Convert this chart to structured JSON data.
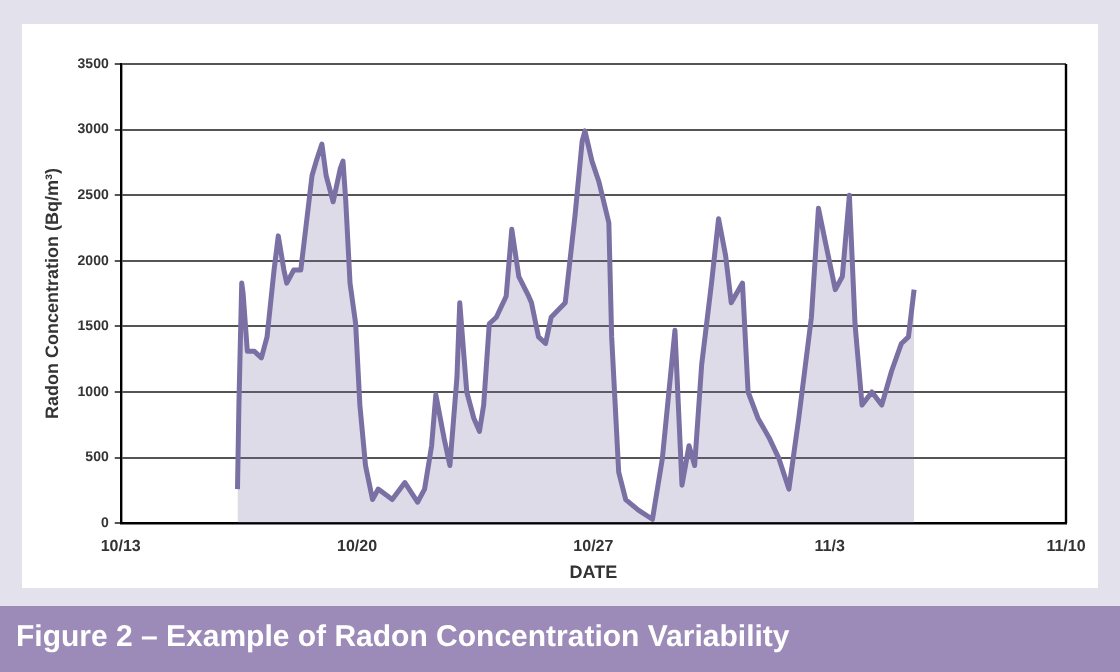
{
  "chart_data": {
    "type": "area",
    "title": "Figure 2 – Example of Radon Concentration Variability",
    "xlabel": "DATE",
    "ylabel": "Radon Concentration (Bq/m³)",
    "xlim": [
      "--10-13",
      "--11-10"
    ],
    "xticks": [
      {
        "value": "--10-13",
        "label": "10/13"
      },
      {
        "value": "--10-20",
        "label": "10/20"
      },
      {
        "value": "--10-27",
        "label": "10/27"
      },
      {
        "value": "--11-03",
        "label": "11/3"
      },
      {
        "value": "--11-10",
        "label": "11/10"
      }
    ],
    "ylim": [
      0,
      3500
    ],
    "yticks": [
      0,
      500,
      1000,
      1500,
      2000,
      2500,
      3000,
      3500
    ],
    "grid": "y",
    "legend": false,
    "marker": "none",
    "line_style": "solid",
    "x": [
      "--10-16T11:00",
      "--10-16T12:00",
      "--10-16T14:00",
      "--10-16T15:00",
      "--10-16T18:00",
      "--10-16T23:00",
      "--10-17T04:00",
      "--10-17T08:00",
      "--10-17T13:00",
      "--10-17T16:00",
      "--10-17T20:00",
      "--10-17T22:00",
      "--10-18T03:00",
      "--10-18T08:00",
      "--10-18T12:00",
      "--10-18T16:00",
      "--10-18T19:00",
      "--10-18T23:00",
      "--10-19T02:00",
      "--10-19T07:00",
      "--10-19T12:00",
      "--10-19T14:00",
      "--10-19T16:00",
      "--10-19T19:00",
      "--10-19T23:00",
      "--10-20T02:00",
      "--10-20T06:00",
      "--10-20T11:00",
      "--10-20T15:00",
      "--10-21T01:00",
      "--10-21T10:00",
      "--10-21T19:00",
      "--10-22T00:00",
      "--10-22T05:00",
      "--10-22T08:00",
      "--10-22T14:00",
      "--10-22T18:00",
      "--10-22T23:00",
      "--10-23T01:00",
      "--10-23T06:00",
      "--10-23T11:00",
      "--10-23T15:00",
      "--10-23T18:00",
      "--10-23T22:00",
      "--10-24T03:00",
      "--10-24T10:00",
      "--10-24T14:00",
      "--10-24T19:00",
      "--10-25T02:00",
      "--10-25T04:00",
      "--10-25T09:00",
      "--10-25T14:00",
      "--10-25T18:00",
      "--10-26T04:00",
      "--10-26T11:00",
      "--10-26T16:00",
      "--10-26T18:00",
      "--10-26T23:00",
      "--10-27T04:00",
      "--10-27T11:00",
      "--10-27T13:00",
      "--10-27T18:00",
      "--10-27T23:00",
      "--10-28T08:00",
      "--10-28T18:00",
      "--10-29T01:00",
      "--10-29T10:00",
      "--10-29T15:00",
      "--10-29T20:00",
      "--10-30T00:00",
      "--10-30T05:00",
      "--10-30T12:00",
      "--10-30T17:00",
      "--10-30T22:00",
      "--10-31T02:00",
      "--10-31T10:00",
      "--10-31T14:00",
      "--10-31T21:00",
      "--11-01T05:00",
      "--11-01T12:00",
      "--11-01T19:00",
      "--11-02T02:00",
      "--11-02T11:00",
      "--11-02T16:00",
      "--11-02T21:00",
      "--11-03T04:00",
      "--11-03T09:00",
      "--11-03T14:00",
      "--11-03T18:00",
      "--11-03T23:00",
      "--11-04T06:00",
      "--11-04T13:00",
      "--11-04T20:00",
      "--11-05T03:00",
      "--11-05T08:00",
      "--11-05T12:00"
    ],
    "series": [
      {
        "color": "#7a70a3",
        "values": [
          260,
          900,
          1830,
          1750,
          1310,
          1310,
          1260,
          1420,
          1930,
          2190,
          1930,
          1830,
          1930,
          1930,
          2290,
          2650,
          2760,
          2890,
          2650,
          2450,
          2700,
          2760,
          2450,
          1830,
          1520,
          900,
          440,
          180,
          260,
          180,
          310,
          160,
          260,
          590,
          980,
          640,
          440,
          1110,
          1680,
          1000,
          800,
          700,
          900,
          1520,
          1570,
          1730,
          2240,
          1880,
          1730,
          1680,
          1420,
          1370,
          1570,
          1680,
          2350,
          2910,
          2990,
          2760,
          2600,
          2290,
          1420,
          390,
          180,
          100,
          30,
          490,
          1470,
          290,
          590,
          440,
          1210,
          1830,
          2320,
          2040,
          1680,
          1830,
          1000,
          800,
          650,
          490,
          260,
          800,
          1570,
          2400,
          2140,
          1780,
          1880,
          2500,
          1520,
          900,
          1000,
          900,
          1160,
          1370,
          1420,
          1780
        ]
      }
    ]
  }
}
